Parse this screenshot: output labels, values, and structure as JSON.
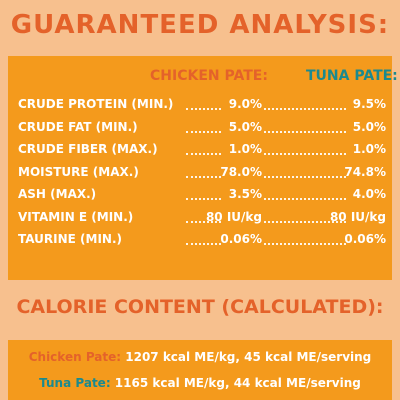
{
  "title": "GUARANTEED ANALYSIS:",
  "columns": {
    "chicken": "CHICKEN PATE:",
    "tuna": "TUNA PATE:"
  },
  "rows": [
    {
      "label": "CRUDE PROTEIN (MIN.)",
      "chicken": "9.0%",
      "tuna": "9.5%"
    },
    {
      "label": "CRUDE FAT (MIN.)",
      "chicken": "5.0%",
      "tuna": "5.0%"
    },
    {
      "label": "CRUDE FIBER (MAX.)",
      "chicken": "1.0%",
      "tuna": "1.0%"
    },
    {
      "label": "MOISTURE (MAX.)",
      "chicken": "78.0%",
      "tuna": "74.8%"
    },
    {
      "label": "ASH (MAX.)",
      "chicken": "3.5%",
      "tuna": "4.0%"
    },
    {
      "label": "VITAMIN E (MIN.)",
      "chicken": "80 IU/kg",
      "tuna": "80 IU/kg"
    },
    {
      "label": "TAURINE (MIN.)",
      "chicken": "0.06%",
      "tuna": "0.06%"
    }
  ],
  "calorie": {
    "title": "CALORIE CONTENT (CALCULATED):",
    "lines": [
      {
        "name": "Chicken Pate:",
        "text": " 1207 kcal ME/kg, 45 kcal ME/serving"
      },
      {
        "name": "Tuna Pate:",
        "text": " 1165 kcal ME/kg, 44 kcal ME/serving"
      }
    ]
  },
  "colors": {
    "background": "#f7c08e",
    "panel": "#f49a1c",
    "title": "#e4622a",
    "tuna": "#1b8a8f",
    "text": "#ffffff"
  }
}
